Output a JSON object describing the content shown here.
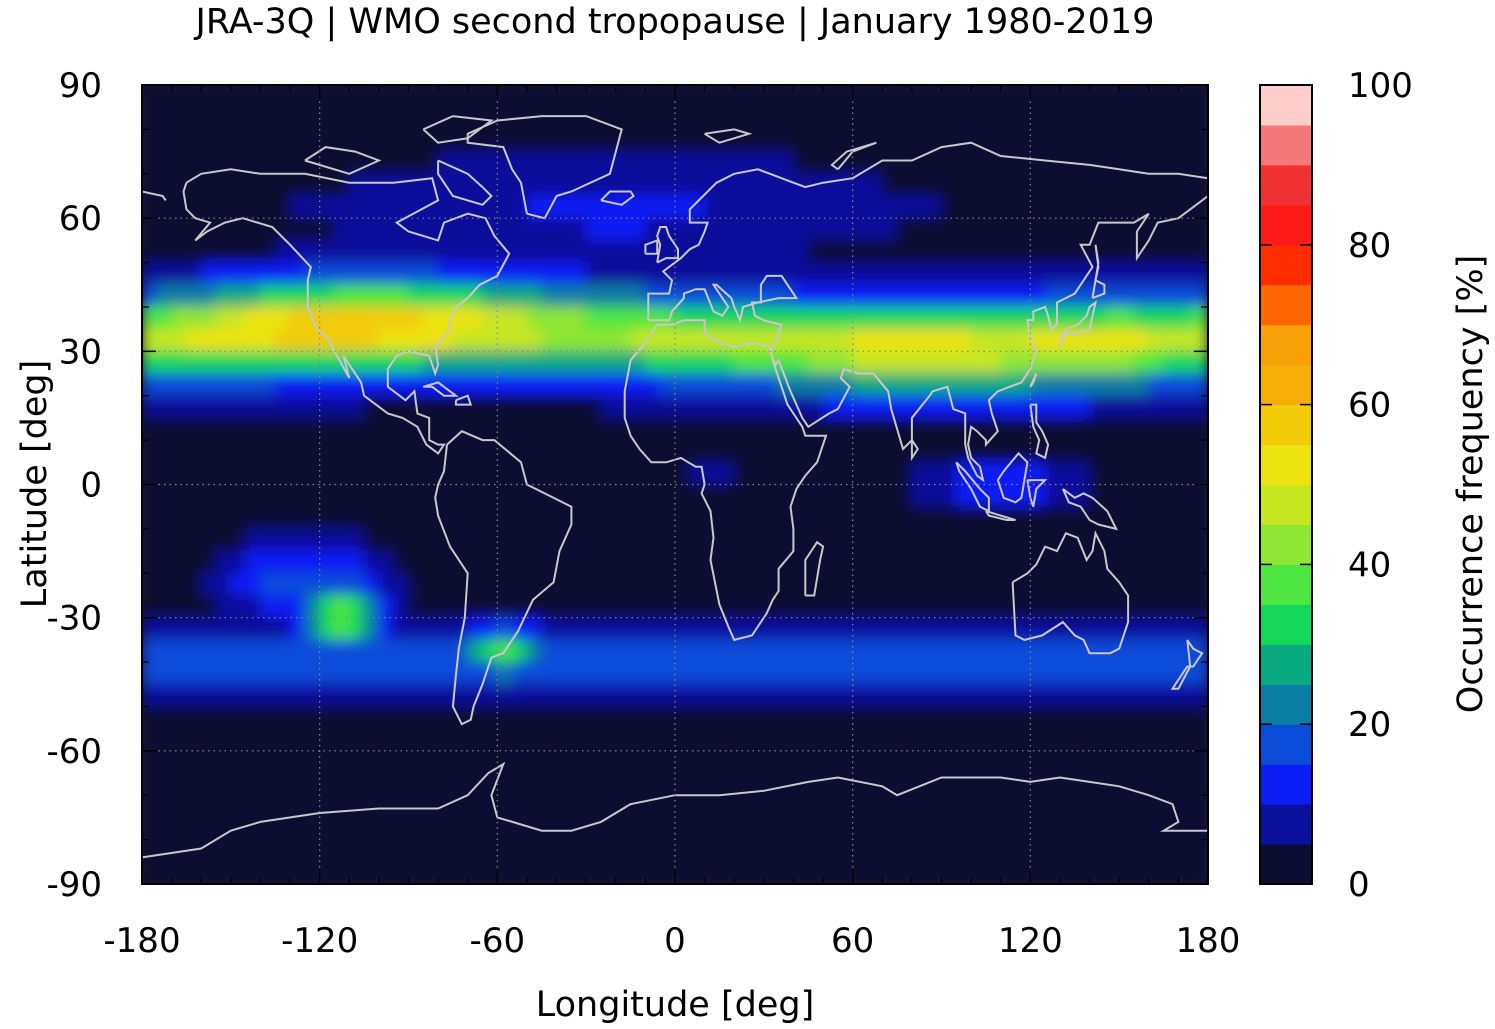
{
  "chart_data": {
    "type": "heatmap",
    "title": "JRA-3Q | WMO second tropopause | January 1980-2019",
    "xlabel": "Longitude [deg]",
    "ylabel": "Latitude [deg]",
    "colorbar_label": "Occurrence frequency [%]",
    "xlim": [
      -180,
      180
    ],
    "ylim": [
      -90,
      90
    ],
    "x_ticks": [
      -180,
      -120,
      -60,
      0,
      60,
      120,
      180
    ],
    "y_ticks": [
      90,
      60,
      30,
      0,
      -30,
      -60,
      -90
    ],
    "colorbar_ticks": [
      100,
      80,
      60,
      40,
      20,
      0
    ],
    "colorbar_range": [
      0,
      100
    ],
    "colorbar_levels": [
      0,
      5,
      10,
      15,
      20,
      25,
      30,
      35,
      40,
      45,
      50,
      55,
      60,
      65,
      70,
      75,
      80,
      85,
      90,
      95,
      100
    ],
    "colorbar_colors": [
      "#0d0d33",
      "#0a0f9c",
      "#0b1ef5",
      "#0b4cd9",
      "#0b7fa3",
      "#0aaa80",
      "#15d85a",
      "#4ee641",
      "#8fe635",
      "#c6e620",
      "#ece20e",
      "#f2cb08",
      "#f5ae06",
      "#f7a008",
      "#ff6500",
      "#ff2d00",
      "#ff1a1a",
      "#f03232",
      "#f57878",
      "#ffcccc"
    ],
    "grid": "dotted at tick positions",
    "overlay": "coastlines",
    "field_description": "Zonal band of high frequency (~50-70%) centered near 30N, secondary band near 30-45S with maxima ~40% over southeast Pacific and South America, weak tropical maximum over Maritime Continent"
  }
}
